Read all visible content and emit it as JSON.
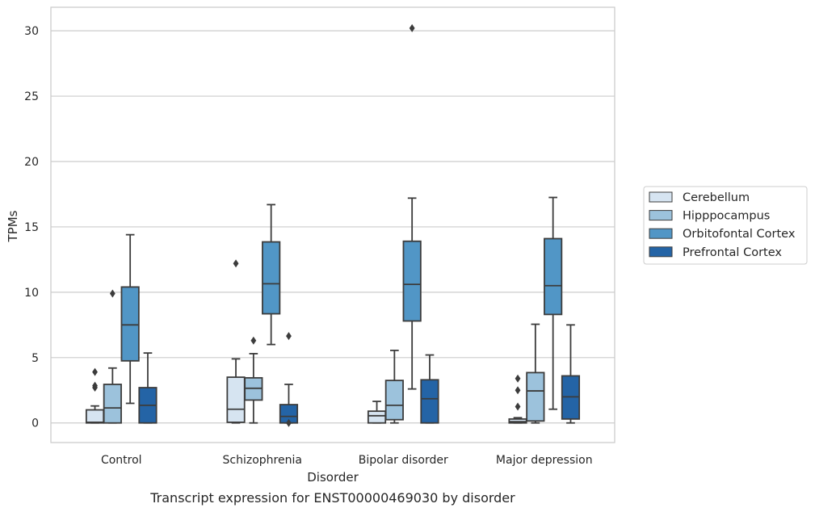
{
  "chart_data": {
    "type": "box",
    "title": "",
    "caption": "Transcript expression for ENST00000469030 by disorder",
    "xlabel": "Disorder",
    "ylabel": "TPMs",
    "ylim": [
      -1.5,
      31.8
    ],
    "yticks": [
      0,
      5,
      10,
      15,
      20,
      25,
      30
    ],
    "grid": "horizontal",
    "legend_position": "right",
    "categories": [
      "Control",
      "Schizophrenia",
      "Bipolar disorder",
      "Major depression"
    ],
    "series": [
      {
        "name": "Cerebellum",
        "color": "#d6e4f1",
        "boxes": [
          {
            "whislo": 0,
            "q1": 0,
            "med": 0.05,
            "q3": 1.0,
            "whishi": 1.3,
            "fliers": [
              2.7,
              2.85,
              3.9
            ]
          },
          {
            "whislo": 0,
            "q1": 0.05,
            "med": 1.05,
            "q3": 3.5,
            "whishi": 4.9,
            "fliers": [
              12.2
            ]
          },
          {
            "whislo": 0,
            "q1": 0,
            "med": 0.55,
            "q3": 0.9,
            "whishi": 1.65,
            "fliers": []
          },
          {
            "whislo": 0,
            "q1": 0,
            "med": 0.1,
            "q3": 0.3,
            "whishi": 0.4,
            "fliers": [
              1.25,
              2.5,
              3.4
            ]
          }
        ]
      },
      {
        "name": "Hipppocampus",
        "color": "#9cc2dc",
        "boxes": [
          {
            "whislo": 0,
            "q1": 0,
            "med": 1.15,
            "q3": 2.95,
            "whishi": 4.2,
            "fliers": [
              9.9
            ]
          },
          {
            "whislo": 0,
            "q1": 1.75,
            "med": 2.65,
            "q3": 3.45,
            "whishi": 5.3,
            "fliers": [
              6.3
            ]
          },
          {
            "whislo": 0,
            "q1": 0.25,
            "med": 1.35,
            "q3": 3.25,
            "whishi": 5.55,
            "fliers": []
          },
          {
            "whislo": 0,
            "q1": 0.15,
            "med": 2.45,
            "q3": 3.85,
            "whishi": 7.55,
            "fliers": []
          }
        ]
      },
      {
        "name": "Orbitofontal Cortex",
        "color": "#5196c6",
        "boxes": [
          {
            "whislo": 1.5,
            "q1": 4.75,
            "med": 7.5,
            "q3": 10.4,
            "whishi": 14.4,
            "fliers": []
          },
          {
            "whislo": 6.0,
            "q1": 8.35,
            "med": 10.65,
            "q3": 13.85,
            "whishi": 16.7,
            "fliers": []
          },
          {
            "whislo": 2.6,
            "q1": 7.8,
            "med": 10.6,
            "q3": 13.9,
            "whishi": 17.2,
            "fliers": [
              30.2
            ]
          },
          {
            "whislo": 1.05,
            "q1": 8.3,
            "med": 10.5,
            "q3": 14.1,
            "whishi": 17.25,
            "fliers": []
          }
        ]
      },
      {
        "name": "Prefrontal Cortex",
        "color": "#2464a6",
        "boxes": [
          {
            "whislo": 0,
            "q1": 0,
            "med": 1.35,
            "q3": 2.7,
            "whishi": 5.35,
            "fliers": []
          },
          {
            "whislo": 0,
            "q1": 0,
            "med": 0.5,
            "q3": 1.4,
            "whishi": 2.95,
            "fliers": [
              0,
              6.65
            ]
          },
          {
            "whislo": 0,
            "q1": 0,
            "med": 1.85,
            "q3": 3.3,
            "whishi": 5.2,
            "fliers": []
          },
          {
            "whislo": 0,
            "q1": 0.3,
            "med": 2.0,
            "q3": 3.6,
            "whishi": 7.5,
            "fliers": []
          }
        ]
      }
    ]
  }
}
